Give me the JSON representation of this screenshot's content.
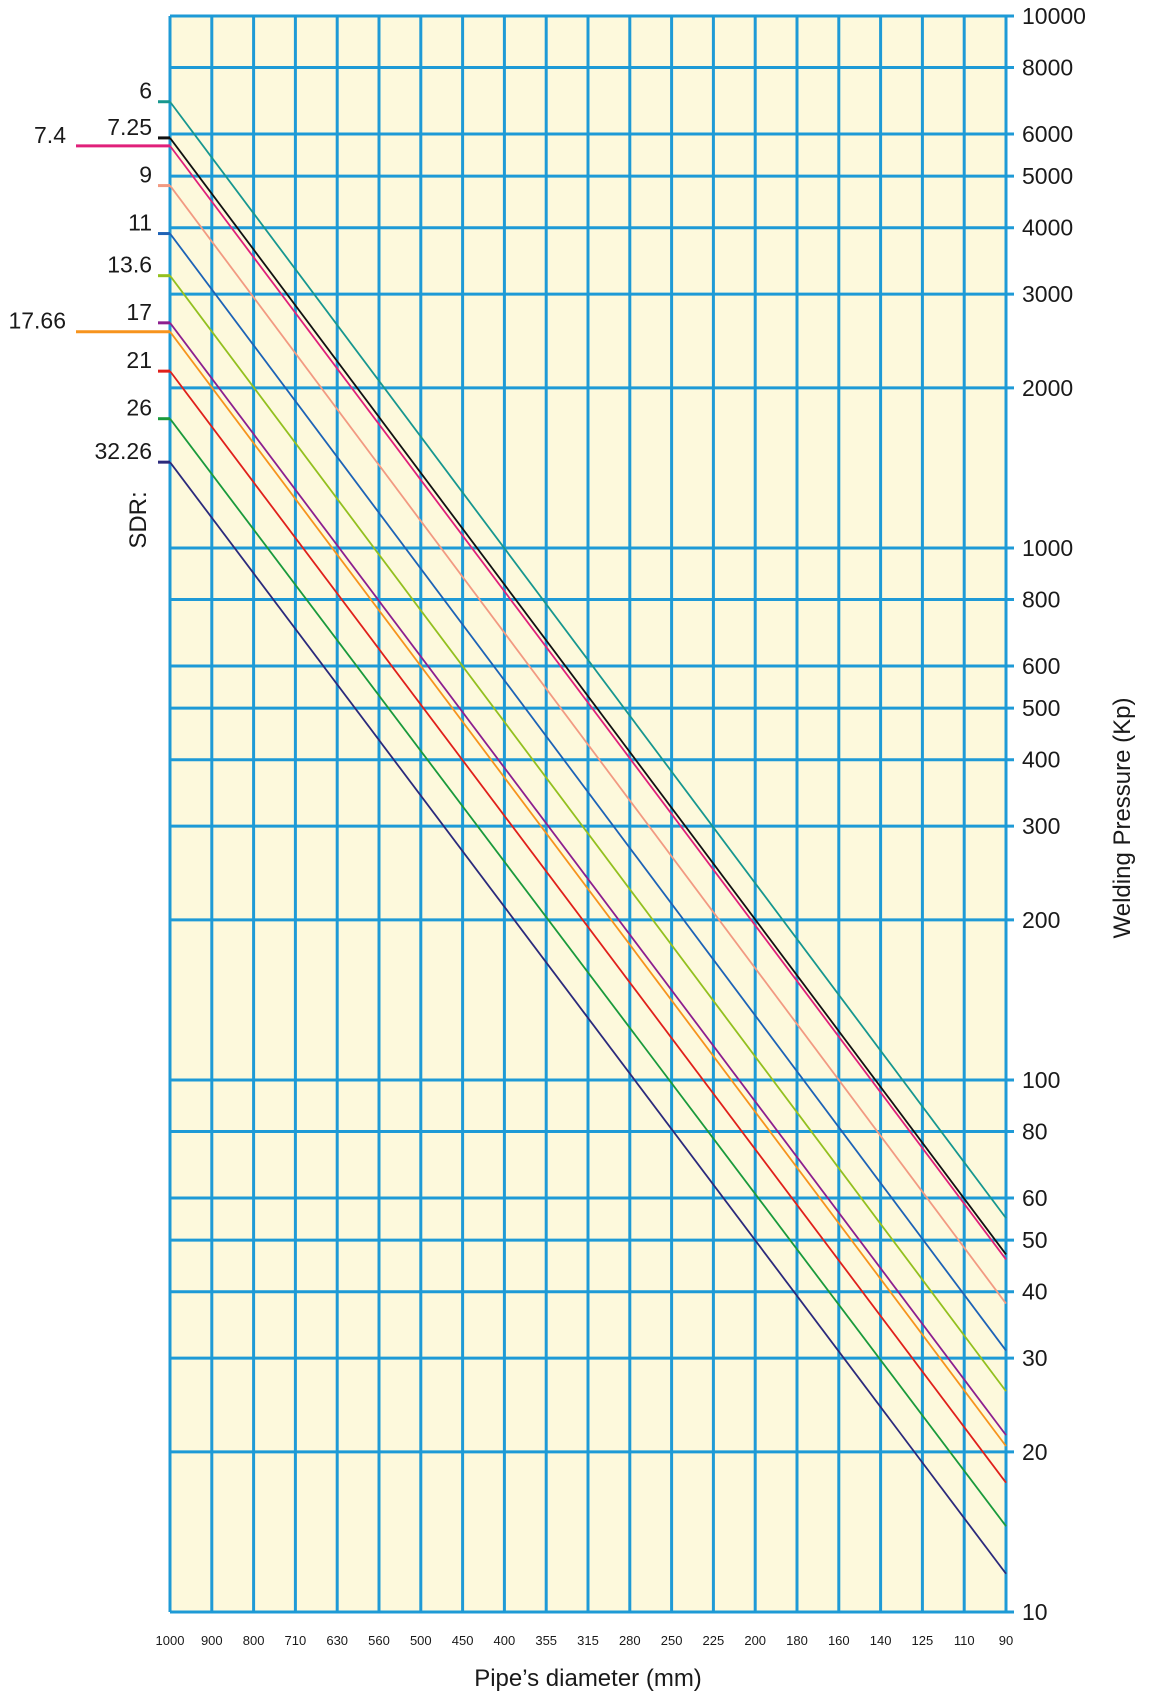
{
  "chart_data": {
    "type": "line",
    "title": "",
    "xlabel": "Pipe’s diameter (mm)",
    "ylabel": "Welding Pressure (Kp)",
    "sdr_title": "SDR:",
    "y_scale": "log",
    "ylim": [
      10,
      10000
    ],
    "x_ticks": [
      "1000",
      "900",
      "800",
      "710",
      "630",
      "560",
      "500",
      "450",
      "400",
      "355",
      "315",
      "280",
      "250",
      "225",
      "200",
      "180",
      "160",
      "140",
      "125",
      "110",
      "90"
    ],
    "y_ticks": [
      10000,
      8000,
      6000,
      5000,
      4000,
      3000,
      2000,
      1000,
      800,
      600,
      500,
      400,
      300,
      200,
      100,
      80,
      60,
      50,
      40,
      30,
      20,
      10
    ],
    "grid": true,
    "background_color": "#fdf9dc",
    "grid_color": "#1e9ad6",
    "series": [
      {
        "name": "6",
        "color": "#17978f",
        "values": [
          6900,
          55
        ]
      },
      {
        "name": "7.25",
        "color": "#111111",
        "values": [
          5900,
          47
        ]
      },
      {
        "name": "7.4",
        "color": "#e0207a",
        "values": [
          5700,
          46
        ]
      },
      {
        "name": "9",
        "color": "#f29a82",
        "values": [
          4800,
          38
        ]
      },
      {
        "name": "11",
        "color": "#1d63b6",
        "values": [
          3900,
          31
        ]
      },
      {
        "name": "13.6",
        "color": "#93c01f",
        "values": [
          3250,
          26
        ]
      },
      {
        "name": "17",
        "color": "#8d1f8f",
        "values": [
          2650,
          21.5
        ]
      },
      {
        "name": "17.66",
        "color": "#f7941d",
        "values": [
          2550,
          20.5
        ]
      },
      {
        "name": "21",
        "color": "#e0201b",
        "values": [
          2150,
          17.5
        ]
      },
      {
        "name": "26",
        "color": "#1a9a3c",
        "values": [
          1750,
          14.5
        ]
      },
      {
        "name": "32.26",
        "color": "#2b2a7c",
        "values": [
          1450,
          11.8
        ]
      }
    ]
  }
}
